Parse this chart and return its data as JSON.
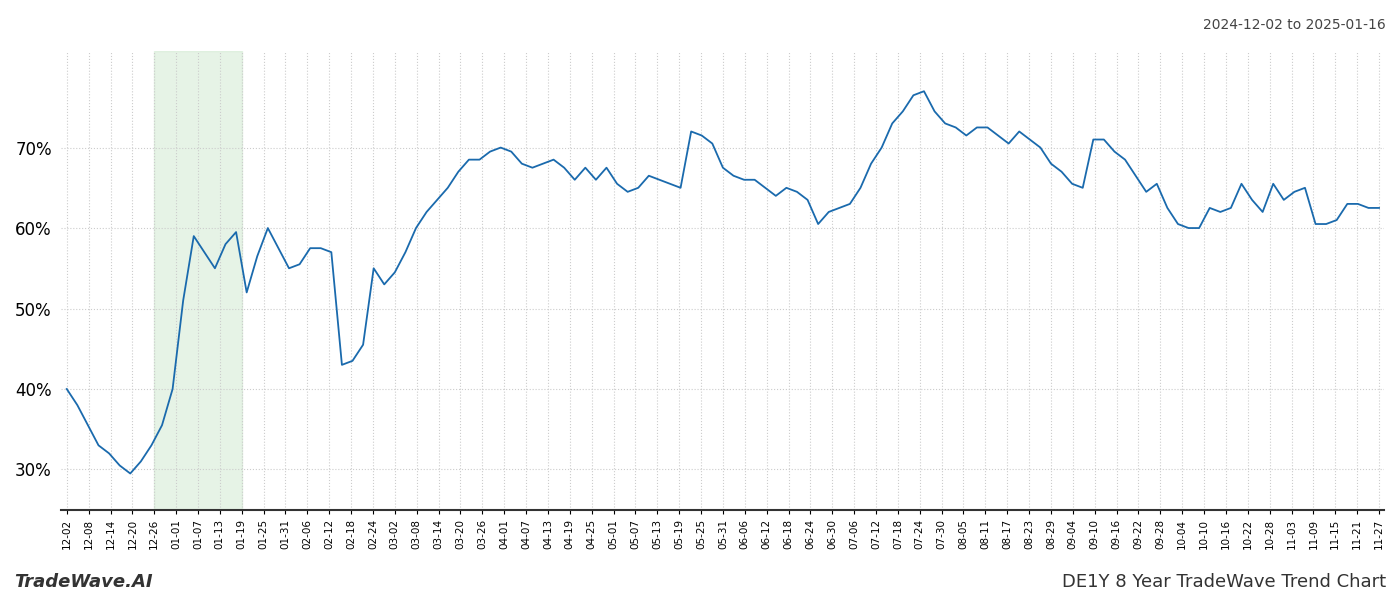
{
  "title_date_range": "2024-12-02 to 2025-01-16",
  "footer_left": "TradeWave.AI",
  "footer_right": "DE1Y 8 Year TradeWave Trend Chart",
  "line_color": "#1a6aad",
  "line_width": 1.3,
  "bg_color": "#ffffff",
  "grid_color": "#cccccc",
  "grid_style": ":",
  "highlight_color": "#c8e6c9",
  "highlight_alpha": 0.45,
  "ylim": [
    25,
    82
  ],
  "yticks": [
    30,
    40,
    50,
    60,
    70
  ],
  "ytick_labels": [
    "30%",
    "40%",
    "50%",
    "60%",
    "70%"
  ],
  "x_labels": [
    "12-02",
    "12-08",
    "12-14",
    "12-20",
    "12-26",
    "01-01",
    "01-07",
    "01-13",
    "01-19",
    "01-25",
    "01-31",
    "02-06",
    "02-12",
    "02-18",
    "02-24",
    "03-02",
    "03-08",
    "03-14",
    "03-20",
    "03-26",
    "04-01",
    "04-07",
    "04-13",
    "04-19",
    "04-25",
    "05-01",
    "05-07",
    "05-13",
    "05-19",
    "05-25",
    "05-31",
    "06-06",
    "06-12",
    "06-18",
    "06-24",
    "06-30",
    "07-06",
    "07-12",
    "07-18",
    "07-24",
    "07-30",
    "08-05",
    "08-11",
    "08-17",
    "08-23",
    "08-29",
    "09-04",
    "09-10",
    "09-16",
    "09-22",
    "09-28",
    "10-04",
    "10-10",
    "10-16",
    "10-22",
    "10-28",
    "11-03",
    "11-09",
    "11-15",
    "11-21",
    "11-27"
  ],
  "highlight_start_label": "12-26",
  "highlight_end_label": "01-19",
  "values": [
    40.0,
    38.0,
    35.5,
    33.0,
    32.0,
    30.5,
    29.5,
    31.0,
    33.0,
    35.5,
    40.0,
    51.0,
    59.0,
    57.0,
    55.0,
    58.0,
    59.5,
    52.0,
    56.5,
    60.0,
    57.5,
    55.0,
    55.5,
    57.5,
    57.5,
    57.0,
    43.0,
    43.5,
    45.5,
    55.0,
    53.0,
    54.5,
    57.0,
    60.0,
    62.0,
    63.5,
    65.0,
    67.0,
    68.5,
    68.5,
    69.5,
    70.0,
    69.5,
    68.0,
    67.5,
    68.0,
    68.5,
    67.5,
    66.0,
    67.5,
    66.0,
    67.5,
    65.5,
    64.5,
    65.0,
    66.5,
    66.0,
    65.5,
    65.0,
    72.0,
    71.5,
    70.5,
    67.5,
    66.5,
    66.0,
    66.0,
    65.0,
    64.0,
    65.0,
    64.5,
    63.5,
    60.5,
    62.0,
    62.5,
    63.0,
    65.0,
    68.0,
    70.0,
    73.0,
    74.5,
    76.5,
    77.0,
    74.5,
    73.0,
    72.5,
    71.5,
    72.5,
    72.5,
    71.5,
    70.5,
    72.0,
    71.0,
    70.0,
    68.0,
    67.0,
    65.5,
    65.0,
    71.0,
    71.0,
    69.5,
    68.5,
    66.5,
    64.5,
    65.5,
    62.5,
    60.5,
    60.0,
    60.0,
    62.5,
    62.0,
    62.5,
    65.5,
    63.5,
    62.0,
    65.5,
    63.5,
    64.5,
    65.0,
    60.5,
    60.5,
    61.0,
    63.0,
    63.0,
    62.5,
    62.5
  ]
}
